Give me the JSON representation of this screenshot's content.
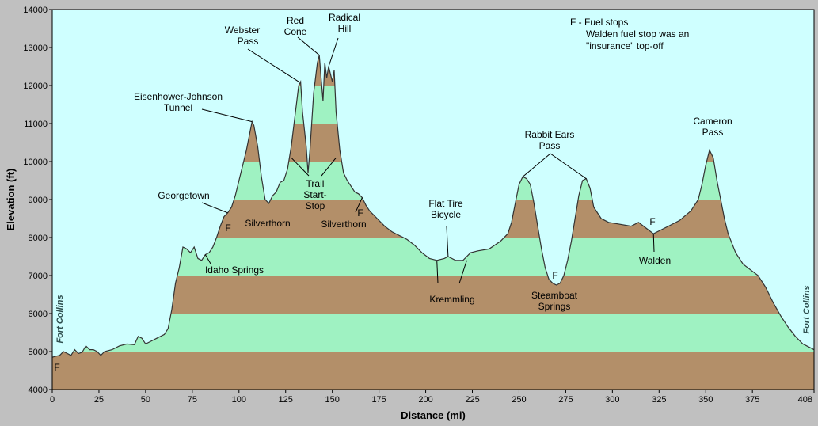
{
  "chart_data": {
    "type": "area",
    "xlabel": "Distance   (mi)",
    "ylabel": "Elevation  (ft)",
    "xlim": [
      0,
      408
    ],
    "ylim": [
      4000,
      14000
    ],
    "x_ticks": [
      0,
      25,
      50,
      75,
      100,
      125,
      150,
      175,
      200,
      225,
      250,
      275,
      300,
      325,
      350,
      375,
      408
    ],
    "y_ticks": [
      4000,
      5000,
      6000,
      7000,
      8000,
      9000,
      10000,
      11000,
      12000,
      13000,
      14000
    ],
    "grid": false,
    "band_interval": 1000,
    "colors": {
      "background": "#cfffff",
      "band_brown": "#b38f69",
      "band_green": "#9ff2c2",
      "profile_line": "#333333"
    },
    "profile": [
      [
        0,
        4850
      ],
      [
        2,
        4880
      ],
      [
        4,
        4900
      ],
      [
        6,
        5000
      ],
      [
        8,
        4950
      ],
      [
        10,
        4900
      ],
      [
        12,
        5050
      ],
      [
        14,
        4950
      ],
      [
        16,
        4980
      ],
      [
        18,
        5150
      ],
      [
        20,
        5050
      ],
      [
        22,
        5050
      ],
      [
        24,
        5000
      ],
      [
        26,
        4900
      ],
      [
        28,
        5000
      ],
      [
        32,
        5050
      ],
      [
        36,
        5150
      ],
      [
        40,
        5200
      ],
      [
        44,
        5180
      ],
      [
        46,
        5400
      ],
      [
        48,
        5350
      ],
      [
        50,
        5200
      ],
      [
        52,
        5250
      ],
      [
        56,
        5350
      ],
      [
        60,
        5450
      ],
      [
        62,
        5600
      ],
      [
        64,
        6100
      ],
      [
        66,
        6800
      ],
      [
        68,
        7200
      ],
      [
        70,
        7750
      ],
      [
        72,
        7700
      ],
      [
        74,
        7600
      ],
      [
        76,
        7750
      ],
      [
        78,
        7450
      ],
      [
        80,
        7400
      ],
      [
        82,
        7550
      ],
      [
        84,
        7600
      ],
      [
        86,
        7750
      ],
      [
        88,
        8000
      ],
      [
        90,
        8300
      ],
      [
        92,
        8550
      ],
      [
        94,
        8650
      ],
      [
        96,
        8800
      ],
      [
        98,
        9100
      ],
      [
        100,
        9500
      ],
      [
        102,
        9900
      ],
      [
        104,
        10300
      ],
      [
        106,
        10800
      ],
      [
        107,
        11050
      ],
      [
        108,
        10950
      ],
      [
        110,
        10400
      ],
      [
        112,
        9600
      ],
      [
        114,
        9000
      ],
      [
        116,
        8900
      ],
      [
        118,
        9100
      ],
      [
        120,
        9200
      ],
      [
        122,
        9450
      ],
      [
        124,
        9500
      ],
      [
        126,
        9800
      ],
      [
        128,
        10400
      ],
      [
        130,
        11200
      ],
      [
        132,
        12000
      ],
      [
        133,
        12100
      ],
      [
        134,
        11300
      ],
      [
        136,
        10400
      ],
      [
        137,
        9700
      ],
      [
        138,
        10300
      ],
      [
        140,
        11800
      ],
      [
        142,
        12600
      ],
      [
        143,
        12800
      ],
      [
        144,
        12200
      ],
      [
        145,
        11600
      ],
      [
        146,
        12600
      ],
      [
        147,
        12200
      ],
      [
        148,
        12500
      ],
      [
        150,
        12100
      ],
      [
        151,
        12400
      ],
      [
        152,
        11300
      ],
      [
        154,
        10300
      ],
      [
        156,
        9700
      ],
      [
        158,
        9500
      ],
      [
        160,
        9350
      ],
      [
        162,
        9200
      ],
      [
        164,
        9150
      ],
      [
        166,
        9050
      ],
      [
        168,
        8850
      ],
      [
        170,
        8700
      ],
      [
        174,
        8500
      ],
      [
        178,
        8300
      ],
      [
        182,
        8150
      ],
      [
        186,
        8050
      ],
      [
        190,
        7950
      ],
      [
        194,
        7800
      ],
      [
        198,
        7600
      ],
      [
        202,
        7450
      ],
      [
        206,
        7400
      ],
      [
        210,
        7450
      ],
      [
        212,
        7500
      ],
      [
        216,
        7400
      ],
      [
        220,
        7400
      ],
      [
        224,
        7600
      ],
      [
        228,
        7650
      ],
      [
        234,
        7700
      ],
      [
        240,
        7900
      ],
      [
        244,
        8100
      ],
      [
        246,
        8400
      ],
      [
        248,
        8900
      ],
      [
        250,
        9400
      ],
      [
        252,
        9600
      ],
      [
        254,
        9550
      ],
      [
        256,
        9400
      ],
      [
        258,
        8900
      ],
      [
        260,
        8300
      ],
      [
        262,
        7700
      ],
      [
        264,
        7200
      ],
      [
        266,
        6900
      ],
      [
        268,
        6800
      ],
      [
        270,
        6750
      ],
      [
        272,
        6800
      ],
      [
        274,
        7000
      ],
      [
        276,
        7400
      ],
      [
        278,
        7900
      ],
      [
        280,
        8500
      ],
      [
        282,
        9100
      ],
      [
        284,
        9500
      ],
      [
        286,
        9550
      ],
      [
        288,
        9300
      ],
      [
        290,
        8800
      ],
      [
        294,
        8500
      ],
      [
        298,
        8400
      ],
      [
        304,
        8350
      ],
      [
        310,
        8300
      ],
      [
        314,
        8400
      ],
      [
        318,
        8250
      ],
      [
        322,
        8100
      ],
      [
        326,
        8200
      ],
      [
        330,
        8300
      ],
      [
        336,
        8450
      ],
      [
        342,
        8700
      ],
      [
        346,
        9000
      ],
      [
        348,
        9400
      ],
      [
        350,
        9900
      ],
      [
        352,
        10300
      ],
      [
        354,
        10100
      ],
      [
        356,
        9500
      ],
      [
        358,
        9000
      ],
      [
        360,
        8500
      ],
      [
        362,
        8100
      ],
      [
        366,
        7600
      ],
      [
        370,
        7300
      ],
      [
        374,
        7150
      ],
      [
        378,
        7000
      ],
      [
        382,
        6700
      ],
      [
        386,
        6300
      ],
      [
        390,
        5950
      ],
      [
        394,
        5650
      ],
      [
        398,
        5400
      ],
      [
        402,
        5200
      ],
      [
        406,
        5100
      ],
      [
        408,
        5050
      ]
    ],
    "annotations": [
      {
        "id": "webster-pass",
        "lines": [
          "Webster",
          "Pass"
        ],
        "point": [
          132,
          12100
        ]
      },
      {
        "id": "red-cone",
        "lines": [
          "Red",
          "Cone"
        ],
        "point": [
          143,
          12800
        ]
      },
      {
        "id": "radical-hill",
        "lines": [
          "Radical",
          "Hill"
        ],
        "point": [
          148,
          12500
        ]
      },
      {
        "id": "eisenhower-johnson-tunnel",
        "lines": [
          "Eisenhower-Johnson",
          "Tunnel"
        ],
        "point": [
          107,
          11050
        ]
      },
      {
        "id": "georgetown",
        "lines": [
          "Georgetown"
        ],
        "point": [
          94,
          8650
        ]
      },
      {
        "id": "silverthorn-1",
        "lines": [
          "Silverthorn"
        ],
        "point": null
      },
      {
        "id": "silverthorn-2",
        "lines": [
          "Silverthorn"
        ],
        "point": [
          166,
          9050
        ]
      },
      {
        "id": "trail-start-stop",
        "lines": [
          "Trail",
          "Start-",
          "Stop"
        ],
        "point": [
          [
            128,
            10100
          ],
          [
            152,
            10100
          ]
        ]
      },
      {
        "id": "idaho-springs",
        "lines": [
          "Idaho Springs"
        ],
        "point": [
          82,
          7550
        ]
      },
      {
        "id": "flat-tire-bicycle",
        "lines": [
          "Flat Tire",
          "Bicycle"
        ],
        "point": [
          212,
          7500
        ]
      },
      {
        "id": "kremmling",
        "lines": [
          "Kremmling"
        ],
        "point": [
          [
            206,
            7400
          ],
          [
            222,
            7400
          ]
        ]
      },
      {
        "id": "rabbit-ears-pass",
        "lines": [
          "Rabbit Ears",
          "Pass"
        ],
        "point": [
          [
            252,
            9600
          ],
          [
            286,
            9550
          ]
        ]
      },
      {
        "id": "steamboat-springs",
        "lines": [
          "Steamboat",
          "Springs"
        ],
        "point": null
      },
      {
        "id": "walden",
        "lines": [
          "Walden"
        ],
        "point": [
          322,
          8100
        ]
      },
      {
        "id": "cameron-pass",
        "lines": [
          "Cameron",
          "Pass"
        ],
        "point": null
      },
      {
        "id": "fort-collins-left",
        "lines": [
          "Fort Collins"
        ],
        "point": null
      },
      {
        "id": "fort-collins-right",
        "lines": [
          "Fort Collins"
        ],
        "point": null
      }
    ],
    "fuel_stop_label": "F",
    "fuel_stops": 6,
    "legend": [
      "F - Fuel stops",
      "Walden fuel stop was an",
      "\"insurance\" top-off"
    ]
  }
}
